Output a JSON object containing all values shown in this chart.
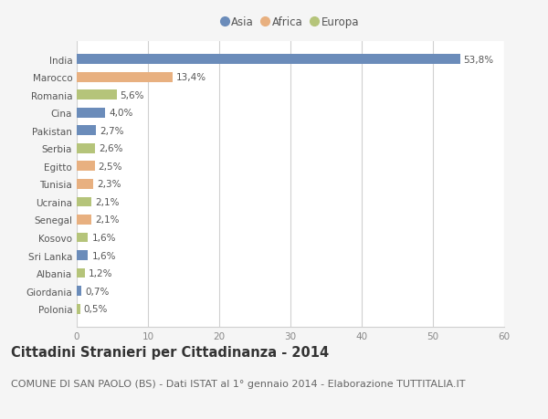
{
  "countries": [
    "India",
    "Marocco",
    "Romania",
    "Cina",
    "Pakistan",
    "Serbia",
    "Egitto",
    "Tunisia",
    "Ucraina",
    "Senegal",
    "Kosovo",
    "Sri Lanka",
    "Albania",
    "Giordania",
    "Polonia"
  ],
  "values": [
    53.8,
    13.4,
    5.6,
    4.0,
    2.7,
    2.6,
    2.5,
    2.3,
    2.1,
    2.1,
    1.6,
    1.6,
    1.2,
    0.7,
    0.5
  ],
  "labels": [
    "53,8%",
    "13,4%",
    "5,6%",
    "4,0%",
    "2,7%",
    "2,6%",
    "2,5%",
    "2,3%",
    "2,1%",
    "2,1%",
    "1,6%",
    "1,6%",
    "1,2%",
    "0,7%",
    "0,5%"
  ],
  "continents": [
    "Asia",
    "Africa",
    "Europa",
    "Asia",
    "Asia",
    "Europa",
    "Africa",
    "Africa",
    "Europa",
    "Africa",
    "Europa",
    "Asia",
    "Europa",
    "Asia",
    "Europa"
  ],
  "colors": {
    "Asia": "#6b8cba",
    "Africa": "#e8b080",
    "Europa": "#b5c47a"
  },
  "xlim": [
    0,
    60
  ],
  "xticks": [
    0,
    10,
    20,
    30,
    40,
    50,
    60
  ],
  "title": "Cittadini Stranieri per Cittadinanza - 2014",
  "subtitle": "COMUNE DI SAN PAOLO (BS) - Dati ISTAT al 1° gennaio 2014 - Elaborazione TUTTITALIA.IT",
  "background_color": "#f5f5f5",
  "bar_background": "#ffffff",
  "grid_color": "#d0d0d0",
  "title_fontsize": 10.5,
  "subtitle_fontsize": 8,
  "label_fontsize": 7.5,
  "tick_fontsize": 7.5,
  "legend_fontsize": 8.5
}
